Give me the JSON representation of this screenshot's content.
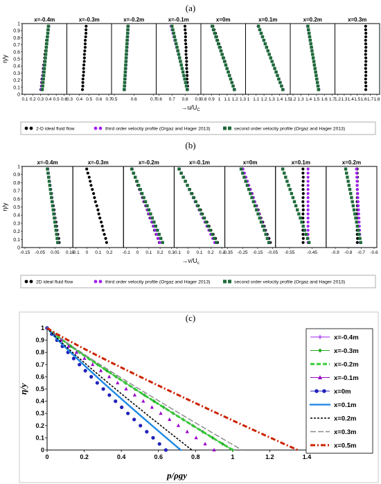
{
  "chart_data": [
    {
      "type": "scatter",
      "panel_label": "(a)",
      "ylabel": "η/y",
      "xlabel": "→u/U",
      "xlabel_sub": "C",
      "ylim": [
        0,
        1
      ],
      "yticks": [
        "0",
        "0.1",
        "0.2",
        "0.3",
        "0.4",
        "0.5",
        "0.6",
        "0.7",
        "0.8",
        "0.9",
        "1"
      ],
      "legend": [
        {
          "label": "2-D ideal fluid flow",
          "color": "#000000",
          "marker": "dot"
        },
        {
          "label": "third order velocity profile (Orgaz and Hager 2013)",
          "color": "#a020f0",
          "marker": "dot"
        },
        {
          "label": "second order velocity profile (Orgaz and Hager 2013)",
          "color": "#1e6b3a",
          "marker": "square"
        }
      ],
      "subplots": [
        {
          "title": "x=-0.4m",
          "xlim": [
            0.1,
            0.6
          ],
          "xticks": [
            "0.1",
            "0.2",
            "0.3",
            "0.4",
            "0.5",
            "0.6"
          ],
          "ideal": [
            0.3,
            0.4
          ],
          "third": [
            0.3,
            0.4
          ],
          "second": [
            0.32,
            0.4
          ]
        },
        {
          "title": "x=-0.3m",
          "xlim": [
            0.3,
            0.7
          ],
          "xticks": [
            "0.3",
            "0.4",
            "0.5",
            "0.6",
            "0.7"
          ],
          "ideal": [
            0.43,
            0.47
          ],
          "third": null,
          "second": null
        },
        {
          "title": "x=-0.2m",
          "xlim": [
            0.5,
            0.7
          ],
          "xticks": [
            "0.5",
            "0.6",
            "0.7"
          ],
          "ideal": [
            0.55,
            0.57
          ],
          "third": [
            0.55,
            0.57
          ],
          "second": [
            0.55,
            0.57
          ]
        },
        {
          "title": "x=-0.1m",
          "xlim": [
            0.6,
            0.9
          ],
          "xticks": [
            "0.6",
            "0.7",
            "0.8",
            "0.9"
          ],
          "ideal": [
            0.82,
            0.8
          ],
          "third": [
            0.82,
            0.69
          ],
          "second": [
            0.82,
            0.7
          ]
        },
        {
          "title": "x=0m",
          "xlim": [
            0.8,
            1.3
          ],
          "xticks": [
            "0.8",
            "0.9",
            "1",
            "1.1",
            "1.2",
            "1.3"
          ],
          "ideal": [
            1.2,
            0.92
          ],
          "third": [
            1.2,
            0.9
          ],
          "second": [
            1.2,
            0.91
          ]
        },
        {
          "title": "x=0.1m",
          "xlim": [
            1.0,
            1.5
          ],
          "xticks": [
            "1",
            "1.1",
            "1.2",
            "1.3",
            "1.4",
            "1.5"
          ],
          "ideal": [
            1.45,
            1.13
          ],
          "third": [
            1.45,
            1.12
          ],
          "second": [
            1.45,
            1.13
          ]
        },
        {
          "title": "x=0.2m",
          "xlim": [
            1.2,
            1.7
          ],
          "xticks": [
            "1.2",
            "1.3",
            "1.4",
            "1.5",
            "1.6",
            "1.7"
          ],
          "ideal": [
            1.53,
            1.39
          ],
          "third": [
            1.53,
            1.38
          ],
          "second": [
            1.53,
            1.39
          ]
        },
        {
          "title": "x=0.3m",
          "xlim": [
            1.2,
            1.8
          ],
          "xticks": [
            "1.2",
            "1.3",
            "1.4",
            "1.5",
            "1.6",
            "1.7",
            "1.8"
          ],
          "ideal": [
            1.63,
            1.63
          ],
          "third": null,
          "second": null
        }
      ]
    },
    {
      "type": "scatter",
      "panel_label": "(b)",
      "ylabel": "η/y",
      "xlabel": "→v/U",
      "xlabel_sub": "c",
      "ylim": [
        0,
        1
      ],
      "yticks": [
        "0",
        "0.1",
        "0.2",
        "0.3",
        "0.4",
        "0.5",
        "0.6",
        "0.7",
        "0.8",
        "0.9",
        "1"
      ],
      "legend": [
        {
          "label": "2D ideal fluid flow",
          "color": "#000000",
          "marker": "dot"
        },
        {
          "label": "third order velocity profile (Orgaz and Hager 2013)",
          "color": "#a020f0",
          "marker": "dot"
        },
        {
          "label": "second order velocity profile (Orgaz and Hager 2013)",
          "color": "#1e6b3a",
          "marker": "square"
        }
      ],
      "subplots": [
        {
          "title": "x=-0.4m",
          "xlim": [
            -0.15,
            0.15
          ],
          "xticks": [
            "-0.15",
            "-0.05",
            "0.05",
            "0.15"
          ],
          "ideal": [
            0.08,
            0.0
          ],
          "third": [
            0.07,
            0.0
          ],
          "second": [
            0.07,
            0.0
          ]
        },
        {
          "title": "x=-0.3m",
          "xlim": [
            -0.1,
            0.3
          ],
          "xticks": [
            "-0.1",
            "0",
            "0.1",
            "0.2"
          ],
          "ideal": [
            0.18,
            0.0
          ],
          "third": null,
          "second": null
        },
        {
          "title": "x=-0.2m",
          "xlim": [
            -0.1,
            0.3
          ],
          "xticks": [
            "-0.1",
            "0",
            "0.1",
            "0.2",
            "0.3"
          ],
          "ideal": [
            0.2,
            -0.05
          ],
          "third": [
            0.2,
            -0.05
          ],
          "second": [
            0.23,
            -0.05
          ]
        },
        {
          "title": "x=-0.1m",
          "xlim": [
            -0.1,
            0.3
          ],
          "xticks": [
            "-0.1",
            "0",
            "0.1",
            "0.2",
            "0.3"
          ],
          "ideal": [
            0.27,
            -0.08
          ],
          "third": [
            0.24,
            -0.08
          ],
          "second": [
            0.26,
            -0.08
          ]
        },
        {
          "title": "x=0m",
          "xlim": [
            -0.35,
            -0.05
          ],
          "xticks": [
            "-0.35",
            "-0.25",
            "-0.15",
            "-0.05"
          ],
          "ideal": [
            -0.06,
            -0.25
          ],
          "third": [
            -0.07,
            -0.25
          ],
          "second": [
            -0.07,
            -0.26
          ]
        },
        {
          "title": "x=0.1m",
          "xlim": [
            -0.6,
            -0.4
          ],
          "xticks": [
            "-0.55",
            "-0.45"
          ],
          "ideal": [
            -0.49,
            -0.49
          ],
          "third": [
            -0.47,
            -0.47
          ],
          "second": [
            -0.46,
            -0.58
          ]
        },
        {
          "title": "x=0.2m",
          "xlim": [
            -0.95,
            -0.6
          ],
          "xticks": [
            "-0.9",
            "-0.8",
            "-0.7",
            "-0.6"
          ],
          "ideal": [
            -0.73,
            -0.73
          ],
          "third": [
            -0.71,
            -0.74
          ],
          "second": [
            -0.7,
            -0.82
          ]
        }
      ]
    },
    {
      "type": "line",
      "panel_label": "(c)",
      "xlabel": "p/ρgy",
      "ylabel": "η/y",
      "xlim": [
        0,
        1.4
      ],
      "ylim": [
        0,
        1
      ],
      "xticks": [
        "0",
        "0.2",
        "0.4",
        "0.6",
        "0.8",
        "1",
        "1.2",
        "1.4"
      ],
      "yticks": [
        "0",
        "0.1",
        "0.2",
        "0.3",
        "0.4",
        "0.5",
        "0.6",
        "0.7",
        "0.8",
        "0.9",
        "1"
      ],
      "series": [
        {
          "name": "x=-0.4m",
          "color": "#a020f0",
          "style": "plus",
          "x_end": 1.0
        },
        {
          "name": "x=-0.3m",
          "color": "#22aa22",
          "style": "diamond",
          "x_end": 1.0
        },
        {
          "name": "x=-0.2m",
          "color": "#33cc33",
          "style": "dash",
          "x_end": 1.0
        },
        {
          "name": "x=-0.1m",
          "color": "#9900cc",
          "style": "triangle",
          "x_end": 0.9
        },
        {
          "name": "x=0m",
          "color": "#2222bb",
          "style": "dot",
          "x_end": 0.64
        },
        {
          "name": "x=0.1m",
          "color": "#1e88e5",
          "style": "dotline",
          "x_end": 0.72
        },
        {
          "name": "x=0.2m",
          "color": "#000000",
          "style": "shortdash",
          "x_end": 0.78
        },
        {
          "name": "x=0.3m",
          "color": "#888888",
          "style": "longdash",
          "x_end": 1.05
        },
        {
          "name": "x=0.5m",
          "color": "#cc2200",
          "style": "dashdot",
          "x_end": 1.35
        }
      ]
    }
  ]
}
